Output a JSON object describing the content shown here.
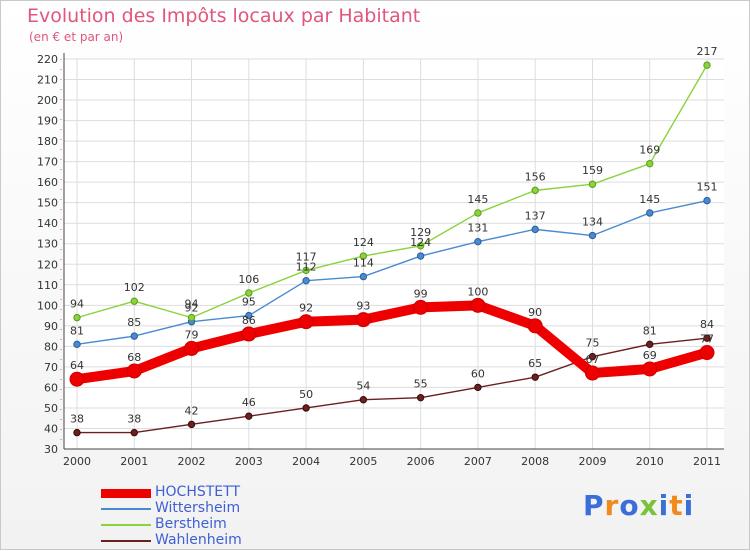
{
  "chart_data": {
    "type": "line",
    "title": "Evolution des Impôts locaux par Habitant",
    "subtitle": "(en € et par an)",
    "xlabel": "",
    "ylabel": "",
    "categories": [
      "2000",
      "2001",
      "2002",
      "2003",
      "2004",
      "2005",
      "2006",
      "2007",
      "2008",
      "2009",
      "2010",
      "2011"
    ],
    "ylim": [
      30,
      220
    ],
    "yticks": [
      30,
      40,
      50,
      60,
      70,
      80,
      90,
      100,
      110,
      120,
      130,
      140,
      150,
      160,
      170,
      180,
      190,
      200,
      210,
      220
    ],
    "grid": true,
    "legend_position": "bottom-left",
    "series": [
      {
        "name": "HOCHSTETT",
        "color": "#ee0000",
        "values": [
          64,
          68,
          79,
          86,
          92,
          93,
          99,
          100,
          90,
          67,
          69,
          77
        ]
      },
      {
        "name": "Wittersheim",
        "color": "#4a8ad0",
        "values": [
          81,
          85,
          92,
          95,
          112,
          114,
          124,
          131,
          137,
          134,
          145,
          151
        ]
      },
      {
        "name": "Berstheim",
        "color": "#8ad33a",
        "values": [
          94,
          102,
          94,
          106,
          117,
          124,
          129,
          145,
          156,
          159,
          169,
          217
        ]
      },
      {
        "name": "Wahlenheim",
        "color": "#6b2020",
        "values": [
          38,
          38,
          42,
          46,
          50,
          54,
          55,
          60,
          65,
          75,
          81,
          84
        ]
      }
    ]
  },
  "logo": {
    "text": "Proxiti",
    "colors": [
      "#3a6fd8",
      "#f08a1c",
      "#3a6fd8",
      "#7ac23a",
      "#3a6fd8",
      "#f08a1c",
      "#3a6fd8"
    ]
  }
}
